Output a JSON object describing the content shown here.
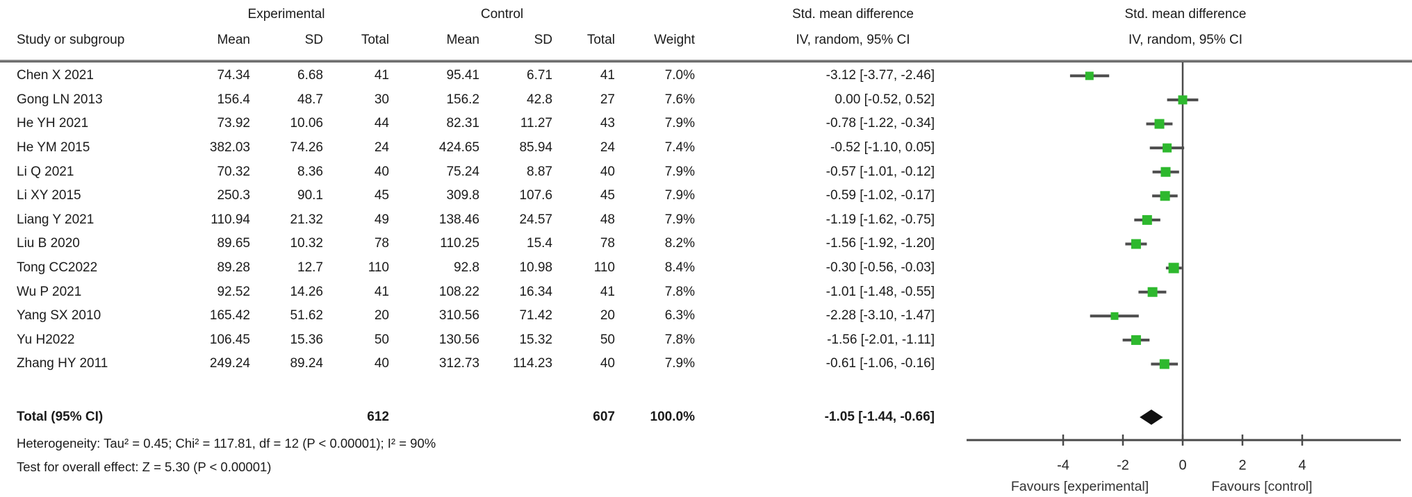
{
  "header": {
    "study_col": "Study or subgroup",
    "group_experimental": "Experimental",
    "group_control": "Control",
    "col_mean": "Mean",
    "col_sd": "SD",
    "col_total": "Total",
    "col_weight": "Weight",
    "effect_line1": "Std. mean difference",
    "effect_line2": "IV, random, 95% CI",
    "plot_line1": "Std. mean difference",
    "plot_line2": "IV, random, 95% CI"
  },
  "studies": [
    {
      "name": "Chen X 2021",
      "exp_mean": "74.34",
      "exp_sd": "6.68",
      "exp_total": "41",
      "ctrl_mean": "95.41",
      "ctrl_sd": "6.71",
      "ctrl_total": "41",
      "weight": "7.0%",
      "ci_text": "-3.12 [-3.77, -2.46]",
      "est": -3.12,
      "lo": -3.77,
      "hi": -2.46,
      "w": 7.0
    },
    {
      "name": "Gong LN 2013",
      "exp_mean": "156.4",
      "exp_sd": "48.7",
      "exp_total": "30",
      "ctrl_mean": "156.2",
      "ctrl_sd": "42.8",
      "ctrl_total": "27",
      "weight": "7.6%",
      "ci_text": "0.00 [-0.52, 0.52]",
      "est": 0.0,
      "lo": -0.52,
      "hi": 0.52,
      "w": 7.6
    },
    {
      "name": "He YH 2021",
      "exp_mean": "73.92",
      "exp_sd": "10.06",
      "exp_total": "44",
      "ctrl_mean": "82.31",
      "ctrl_sd": "11.27",
      "ctrl_total": "43",
      "weight": "7.9%",
      "ci_text": "-0.78 [-1.22, -0.34]",
      "est": -0.78,
      "lo": -1.22,
      "hi": -0.34,
      "w": 7.9
    },
    {
      "name": "He YM 2015",
      "exp_mean": "382.03",
      "exp_sd": "74.26",
      "exp_total": "24",
      "ctrl_mean": "424.65",
      "ctrl_sd": "85.94",
      "ctrl_total": "24",
      "weight": "7.4%",
      "ci_text": "-0.52 [-1.10, 0.05]",
      "est": -0.52,
      "lo": -1.1,
      "hi": 0.05,
      "w": 7.4
    },
    {
      "name": "Li Q 2021",
      "exp_mean": "70.32",
      "exp_sd": "8.36",
      "exp_total": "40",
      "ctrl_mean": "75.24",
      "ctrl_sd": "8.87",
      "ctrl_total": "40",
      "weight": "7.9%",
      "ci_text": "-0.57 [-1.01, -0.12]",
      "est": -0.57,
      "lo": -1.01,
      "hi": -0.12,
      "w": 7.9
    },
    {
      "name": "Li XY 2015",
      "exp_mean": "250.3",
      "exp_sd": "90.1",
      "exp_total": "45",
      "ctrl_mean": "309.8",
      "ctrl_sd": "107.6",
      "ctrl_total": "45",
      "weight": "7.9%",
      "ci_text": "-0.59 [-1.02, -0.17]",
      "est": -0.59,
      "lo": -1.02,
      "hi": -0.17,
      "w": 7.9
    },
    {
      "name": "Liang Y 2021",
      "exp_mean": "110.94",
      "exp_sd": "21.32",
      "exp_total": "49",
      "ctrl_mean": "138.46",
      "ctrl_sd": "24.57",
      "ctrl_total": "48",
      "weight": "7.9%",
      "ci_text": "-1.19 [-1.62, -0.75]",
      "est": -1.19,
      "lo": -1.62,
      "hi": -0.75,
      "w": 7.9
    },
    {
      "name": "Liu B 2020",
      "exp_mean": "89.65",
      "exp_sd": "10.32",
      "exp_total": "78",
      "ctrl_mean": "110.25",
      "ctrl_sd": "15.4",
      "ctrl_total": "78",
      "weight": "8.2%",
      "ci_text": "-1.56 [-1.92, -1.20]",
      "est": -1.56,
      "lo": -1.92,
      "hi": -1.2,
      "w": 8.2
    },
    {
      "name": "Tong CC2022",
      "exp_mean": "89.28",
      "exp_sd": "12.7",
      "exp_total": "110",
      "ctrl_mean": "92.8",
      "ctrl_sd": "10.98",
      "ctrl_total": "110",
      "weight": "8.4%",
      "ci_text": "-0.30 [-0.56, -0.03]",
      "est": -0.3,
      "lo": -0.56,
      "hi": -0.03,
      "w": 8.4
    },
    {
      "name": "Wu P 2021",
      "exp_mean": "92.52",
      "exp_sd": "14.26",
      "exp_total": "41",
      "ctrl_mean": "108.22",
      "ctrl_sd": "16.34",
      "ctrl_total": "41",
      "weight": "7.8%",
      "ci_text": "-1.01 [-1.48, -0.55]",
      "est": -1.01,
      "lo": -1.48,
      "hi": -0.55,
      "w": 7.8
    },
    {
      "name": "Yang SX 2010",
      "exp_mean": "165.42",
      "exp_sd": "51.62",
      "exp_total": "20",
      "ctrl_mean": "310.56",
      "ctrl_sd": "71.42",
      "ctrl_total": "20",
      "weight": "6.3%",
      "ci_text": "-2.28 [-3.10, -1.47]",
      "est": -2.28,
      "lo": -3.1,
      "hi": -1.47,
      "w": 6.3
    },
    {
      "name": "Yu H2022",
      "exp_mean": "106.45",
      "exp_sd": "15.36",
      "exp_total": "50",
      "ctrl_mean": "130.56",
      "ctrl_sd": "15.32",
      "ctrl_total": "50",
      "weight": "7.8%",
      "ci_text": "-1.56 [-2.01, -1.11]",
      "est": -1.56,
      "lo": -2.01,
      "hi": -1.11,
      "w": 7.8
    },
    {
      "name": "Zhang HY 2011",
      "exp_mean": "249.24",
      "exp_sd": "89.24",
      "exp_total": "40",
      "ctrl_mean": "312.73",
      "ctrl_sd": "114.23",
      "ctrl_total": "40",
      "weight": "7.9%",
      "ci_text": "-0.61 [-1.06, -0.16]",
      "est": -0.61,
      "lo": -1.06,
      "hi": -0.16,
      "w": 7.9
    }
  ],
  "totals": {
    "label": "Total (95% CI)",
    "exp_total": "612",
    "ctrl_total": "607",
    "weight": "100.0%",
    "ci_text": "-1.05 [-1.44, -0.66]",
    "est": -1.05,
    "lo": -1.44,
    "hi": -0.66
  },
  "footnotes": {
    "heterogeneity": "Heterogeneity: Tau² = 0.45; Chi² = 117.81, df = 12 (P < 0.00001); I² = 90%",
    "overall_effect": "Test for overall effect: Z = 5.30 (P < 0.00001)"
  },
  "axis": {
    "ticks": [
      "-4",
      "-2",
      "0",
      "2",
      "4"
    ],
    "tick_values": [
      -4,
      -2,
      0,
      2,
      4
    ],
    "favours_left": "Favours [experimental]",
    "favours_right": "Favours [control]"
  },
  "colors": {
    "marker_green": "#2eb82e",
    "ci_line": "#4d4d4d",
    "axis_line": "#4a4a4a",
    "diamond": "#111111",
    "text": "#1b1b1b"
  },
  "chart_data": {
    "type": "forest",
    "effect_measure": "Std. mean difference, IV, random, 95% CI",
    "studies": [
      "Chen X 2021",
      "Gong LN 2013",
      "He YH 2021",
      "He YM 2015",
      "Li Q 2021",
      "Li XY 2015",
      "Liang Y 2021",
      "Liu B 2020",
      "Tong CC2022",
      "Wu P 2021",
      "Yang SX 2010",
      "Yu H2022",
      "Zhang HY 2011"
    ],
    "estimates": [
      -3.12,
      0.0,
      -0.78,
      -0.52,
      -0.57,
      -0.59,
      -1.19,
      -1.56,
      -0.3,
      -1.01,
      -2.28,
      -1.56,
      -0.61
    ],
    "ci_low": [
      -3.77,
      -0.52,
      -1.22,
      -1.1,
      -1.01,
      -1.02,
      -1.62,
      -1.92,
      -0.56,
      -1.48,
      -3.1,
      -2.01,
      -1.06
    ],
    "ci_high": [
      -2.46,
      0.52,
      -0.34,
      0.05,
      -0.12,
      -0.17,
      -0.75,
      -1.2,
      -0.03,
      -0.55,
      -1.47,
      -1.11,
      -0.16
    ],
    "weights_pct": [
      7.0,
      7.6,
      7.9,
      7.4,
      7.9,
      7.9,
      7.9,
      8.2,
      8.4,
      7.8,
      6.3,
      7.8,
      7.9
    ],
    "experimental": {
      "means": [
        74.34,
        156.4,
        73.92,
        382.03,
        70.32,
        250.3,
        110.94,
        89.65,
        89.28,
        92.52,
        165.42,
        106.45,
        249.24
      ],
      "sds": [
        6.68,
        48.7,
        10.06,
        74.26,
        8.36,
        90.1,
        21.32,
        10.32,
        12.7,
        14.26,
        51.62,
        15.36,
        89.24
      ],
      "totals": [
        41,
        30,
        44,
        24,
        40,
        45,
        49,
        78,
        110,
        41,
        20,
        50,
        40
      ],
      "total_n": 612
    },
    "control": {
      "means": [
        95.41,
        156.2,
        82.31,
        424.65,
        75.24,
        309.8,
        138.46,
        110.25,
        92.8,
        108.22,
        310.56,
        130.56,
        312.73
      ],
      "sds": [
        6.71,
        42.8,
        11.27,
        85.94,
        8.87,
        107.6,
        24.57,
        15.4,
        10.98,
        16.34,
        71.42,
        15.32,
        114.23
      ],
      "totals": [
        41,
        27,
        43,
        24,
        40,
        45,
        48,
        78,
        110,
        41,
        20,
        50,
        40
      ],
      "total_n": 607
    },
    "total": {
      "estimate": -1.05,
      "ci_low": -1.44,
      "ci_high": -0.66,
      "weight_pct": 100.0
    },
    "x_ticks": [
      -4,
      -2,
      0,
      2,
      4
    ],
    "xlabel_left": "Favours [experimental]",
    "xlabel_right": "Favours [control]",
    "heterogeneity": "Tau² = 0.45; Chi² = 117.81, df = 12 (P < 0.00001); I² = 90%",
    "overall_effect_test": "Z = 5.30 (P < 0.00001)"
  }
}
